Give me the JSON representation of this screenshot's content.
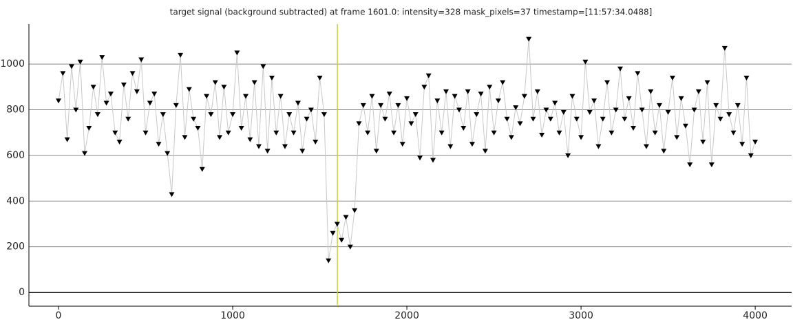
{
  "chart_data": {
    "type": "line",
    "title": "target signal (background subtracted) at frame 1601.0: intensity=328 mask_pixels=37 timestamp=[11:57:34.0488]",
    "x": [
      0,
      25,
      50,
      75,
      100,
      125,
      150,
      175,
      200,
      225,
      250,
      275,
      300,
      325,
      350,
      375,
      400,
      425,
      450,
      475,
      500,
      525,
      550,
      575,
      600,
      625,
      650,
      675,
      700,
      725,
      750,
      775,
      800,
      825,
      850,
      875,
      900,
      925,
      950,
      975,
      1000,
      1025,
      1050,
      1075,
      1100,
      1125,
      1150,
      1175,
      1200,
      1225,
      1250,
      1275,
      1300,
      1325,
      1350,
      1375,
      1400,
      1425,
      1450,
      1475,
      1500,
      1525,
      1550,
      1575,
      1600,
      1625,
      1650,
      1675,
      1700,
      1725,
      1750,
      1775,
      1800,
      1825,
      1850,
      1875,
      1900,
      1925,
      1950,
      1975,
      2000,
      2025,
      2050,
      2075,
      2100,
      2125,
      2150,
      2175,
      2200,
      2225,
      2250,
      2275,
      2300,
      2325,
      2350,
      2375,
      2400,
      2425,
      2450,
      2475,
      2500,
      2525,
      2550,
      2575,
      2600,
      2625,
      2650,
      2675,
      2700,
      2725,
      2750,
      2775,
      2800,
      2825,
      2850,
      2875,
      2900,
      2925,
      2950,
      2975,
      3000,
      3025,
      3050,
      3075,
      3100,
      3125,
      3150,
      3175,
      3200,
      3225,
      3250,
      3275,
      3300,
      3325,
      3350,
      3375,
      3400,
      3425,
      3450,
      3475,
      3500,
      3525,
      3550,
      3575,
      3600,
      3625,
      3650,
      3675,
      3700,
      3725,
      3750,
      3775,
      3800,
      3825,
      3850,
      3875,
      3900,
      3925,
      3950,
      3975,
      4000
    ],
    "series": [
      {
        "name": "intensity",
        "color": "#000000",
        "line_color": "#c8c8c8",
        "values": [
          840,
          960,
          670,
          990,
          800,
          1010,
          610,
          720,
          900,
          780,
          1030,
          830,
          870,
          700,
          660,
          910,
          760,
          960,
          880,
          1020,
          700,
          830,
          870,
          650,
          780,
          610,
          430,
          820,
          1040,
          680,
          890,
          760,
          720,
          540,
          860,
          780,
          920,
          680,
          900,
          700,
          780,
          1050,
          720,
          860,
          670,
          920,
          640,
          990,
          620,
          940,
          700,
          860,
          640,
          780,
          700,
          830,
          620,
          760,
          800,
          660,
          940,
          780,
          140,
          260,
          300,
          230,
          330,
          200,
          360,
          740,
          820,
          700,
          860,
          620,
          820,
          760,
          870,
          700,
          820,
          650,
          850,
          740,
          780,
          590,
          900,
          950,
          580,
          840,
          700,
          880,
          640,
          860,
          800,
          720,
          880,
          650,
          780,
          870,
          620,
          900,
          700,
          840,
          920,
          760,
          680,
          810,
          740,
          860,
          1110,
          760,
          880,
          690,
          800,
          760,
          830,
          700,
          790,
          600,
          860,
          760,
          680,
          1010,
          790,
          840,
          640,
          760,
          920,
          700,
          800,
          980,
          760,
          850,
          720,
          960,
          800,
          640,
          880,
          700,
          820,
          620,
          790,
          940,
          680,
          850,
          730,
          560,
          800,
          880,
          660,
          920,
          560,
          820,
          760,
          1070,
          780,
          700,
          820,
          650,
          940,
          600,
          660
        ]
      }
    ],
    "xlim": [
      -170,
      4209
    ],
    "ylim": [
      -60,
      1175
    ],
    "xticks": [
      0,
      1000,
      2000,
      3000,
      4000
    ],
    "yticks": [
      0,
      200,
      400,
      600,
      800,
      1000
    ],
    "grid": true,
    "vline": {
      "x": 1601,
      "color": "#c8d23c"
    }
  }
}
